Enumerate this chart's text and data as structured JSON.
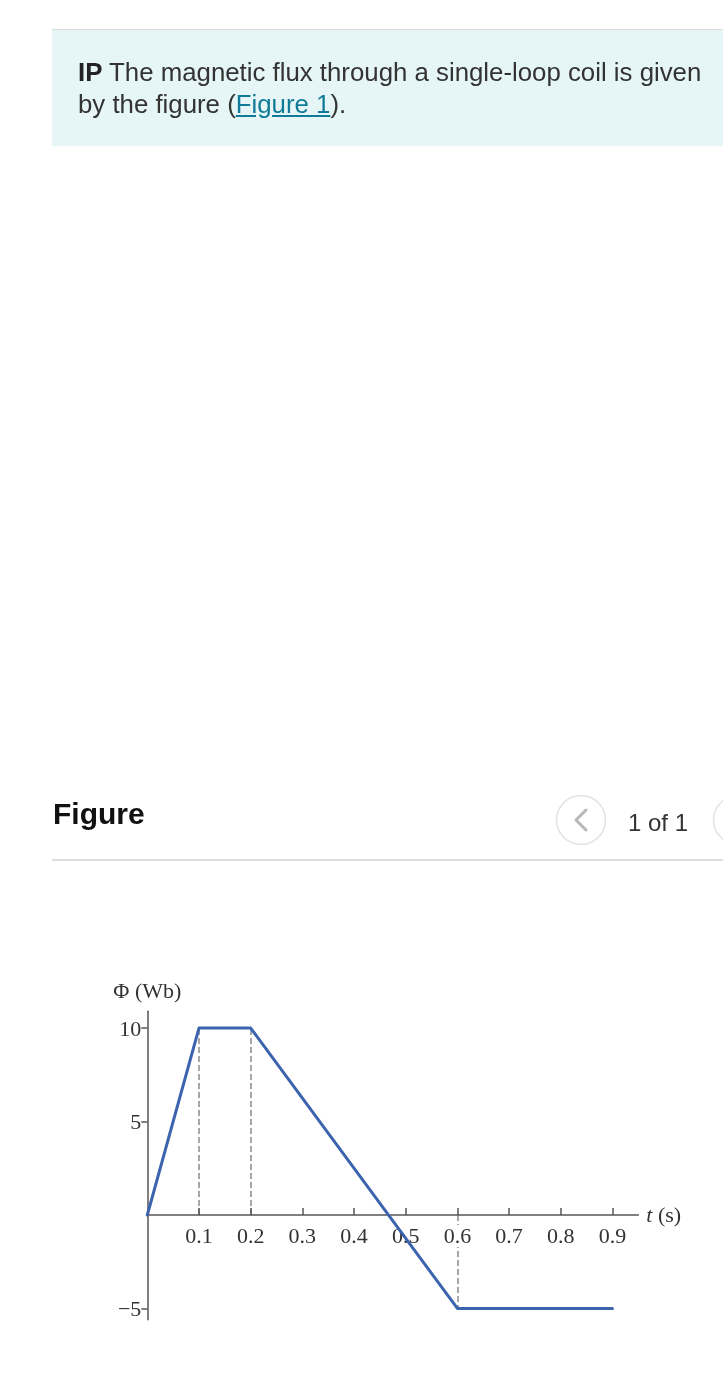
{
  "chart_data": {
    "type": "line",
    "title": "IP The magnetic flux through a single-loop coil is given by the figure (Figure 1).",
    "subtitle": "Figure",
    "annotations": [
      "1 of 1"
    ],
    "xlabel": "t (s)",
    "ylabel": "Φ (Wb)",
    "x": [
      0,
      0.1,
      0.2,
      0.6,
      0.9
    ],
    "values": [
      0,
      10,
      10,
      -5,
      -5
    ],
    "color": "#3c64ae",
    "xlim": [
      0,
      0.95
    ],
    "xticks": [
      0.1,
      0.2,
      0.3,
      0.4,
      0.5,
      0.6,
      0.7,
      0.8,
      0.9
    ],
    "ylim": [
      -5.6,
      10.9
    ],
    "yticks": [
      10,
      5,
      {
        "value": -5,
        "label": "−5"
      }
    ],
    "ref_lines": [
      {
        "axis": "x",
        "value": 0.1,
        "label": null,
        "color": "#8a8a8a",
        "line_style": "dashed"
      },
      {
        "axis": "x",
        "value": 0.2,
        "label": null,
        "color": "#8a8a8a",
        "line_style": "dashed"
      },
      {
        "axis": "x",
        "value": 0.6,
        "label": null,
        "color": "#8a8a8a",
        "line_style": "dashed"
      }
    ],
    "grid": false,
    "marker": "none",
    "line_style": "solid"
  }
}
